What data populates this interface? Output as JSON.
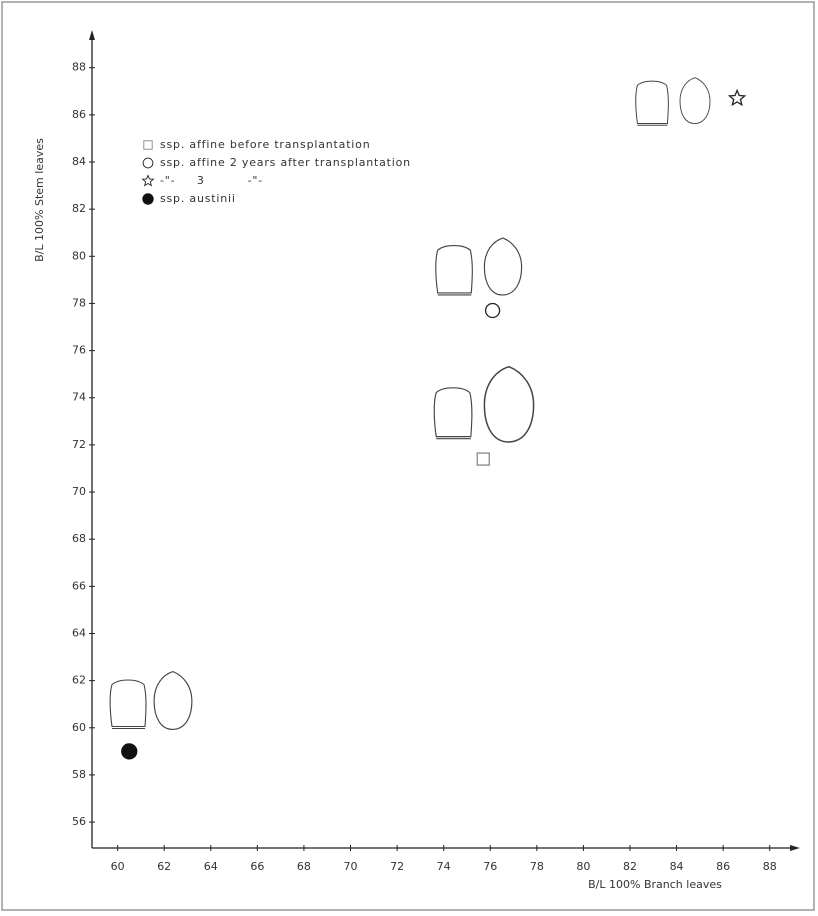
{
  "chart_data": {
    "type": "scatter",
    "xlabel": "B/L 100% Branch leaves",
    "ylabel": "B/L 100% Stem leaves",
    "xlim": [
      58.9,
      89.3
    ],
    "ylim": [
      54.9,
      89.6
    ],
    "xticks": [
      60,
      62,
      64,
      66,
      68,
      70,
      72,
      74,
      76,
      78,
      80,
      82,
      84,
      86,
      88
    ],
    "yticks": [
      56,
      58,
      60,
      62,
      64,
      66,
      68,
      70,
      72,
      74,
      76,
      78,
      80,
      82,
      84,
      86,
      88
    ],
    "series": [
      {
        "name": "ssp. affine before transplantation",
        "marker": "square",
        "color": "#888888",
        "x": [
          75.7
        ],
        "values": [
          71.4
        ]
      },
      {
        "name": "ssp. affine 2 years after transplantation",
        "marker": "circle",
        "color": "#222222",
        "x": [
          76.1
        ],
        "values": [
          77.7
        ]
      },
      {
        "name": "-\"-     3          -\"-",
        "marker": "star",
        "color": "#222222",
        "x": [
          86.6
        ],
        "values": [
          86.7
        ]
      },
      {
        "name": "ssp. austinii",
        "marker": "dot",
        "color": "#111111",
        "x": [
          60.5
        ],
        "values": [
          59.0
        ]
      }
    ]
  }
}
